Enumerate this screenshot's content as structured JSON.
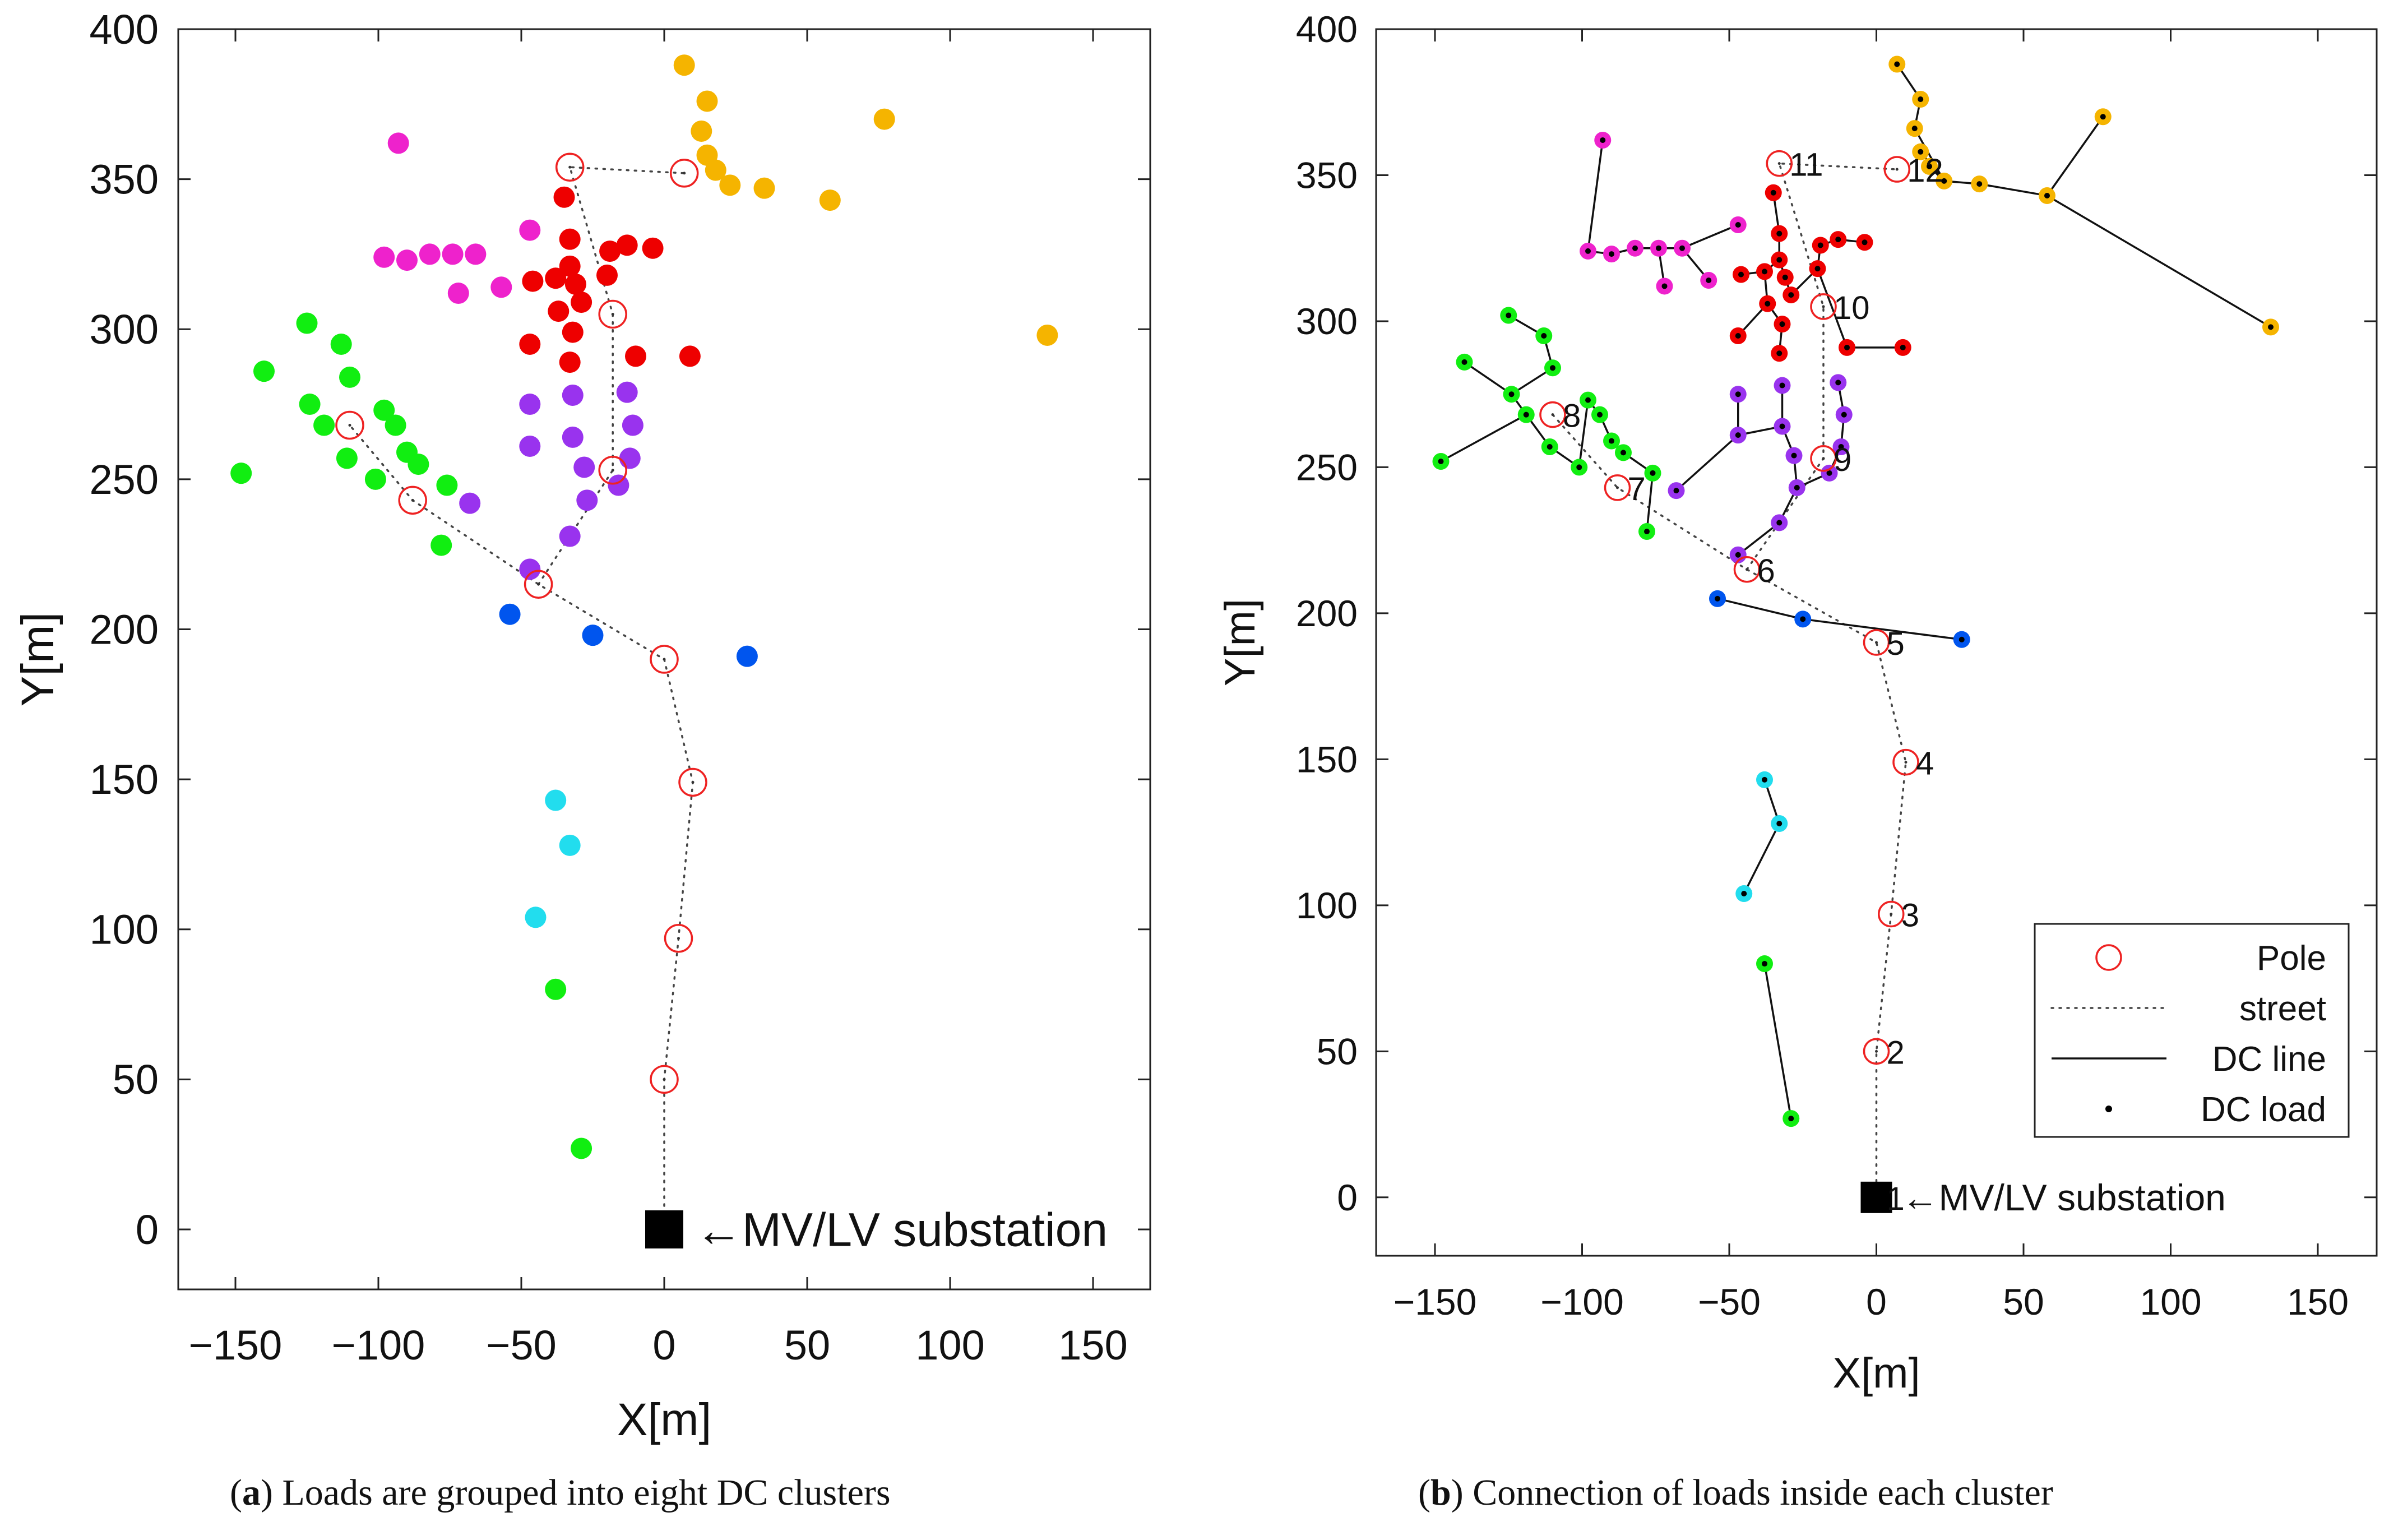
{
  "chart_data": [
    {
      "type": "scatter",
      "panel": "a",
      "xlabel": "X[m]",
      "ylabel": "Y[m]",
      "xlim": [
        -170,
        170
      ],
      "ylim": [
        -20,
        400
      ],
      "xticks": [
        -150,
        -100,
        -50,
        0,
        50,
        100,
        150
      ],
      "yticks": [
        0,
        50,
        100,
        150,
        200,
        250,
        300,
        350,
        400
      ],
      "xtick_labels": [
        "−150",
        "−100",
        "−50",
        "0",
        "50",
        "100",
        "150"
      ],
      "ytick_labels": [
        "0",
        "50",
        "100",
        "150",
        "200",
        "250",
        "300",
        "350",
        "400"
      ],
      "grid": false,
      "caption": {
        "letter": "a",
        "text": " Loads are grouped into eight DC clusters"
      },
      "substation_label": "←MV/LV substation"
    },
    {
      "type": "scatter",
      "panel": "b",
      "xlabel": "X[m]",
      "ylabel": "Y[m]",
      "xlim": [
        -170,
        170
      ],
      "ylim": [
        -20,
        400
      ],
      "xticks": [
        -150,
        -100,
        -50,
        0,
        50,
        100,
        150
      ],
      "yticks": [
        0,
        50,
        100,
        150,
        200,
        250,
        300,
        350,
        400
      ],
      "xtick_labels": [
        "−150",
        "−100",
        "−50",
        "0",
        "50",
        "100",
        "150"
      ],
      "ytick_labels": [
        "0",
        "50",
        "100",
        "150",
        "200",
        "250",
        "300",
        "350",
        "400"
      ],
      "grid": false,
      "caption": {
        "letter": "b",
        "text": " Connection of loads inside each cluster"
      },
      "substation_label": "←MV/LV substation",
      "legend": {
        "position": "bottom-right",
        "entries": [
          {
            "label": "Pole",
            "marker": "circle-open-red"
          },
          {
            "label": "street",
            "marker": "dotted-line"
          },
          {
            "label": "DC line",
            "marker": "solid-line"
          },
          {
            "label": "DC load",
            "marker": "dot"
          }
        ]
      },
      "pole_labels": [
        "1",
        "2",
        "3",
        "4",
        "5",
        "6",
        "7",
        "8",
        "9",
        "10",
        "11",
        "12"
      ]
    }
  ],
  "network": {
    "substation": [
      0,
      0
    ],
    "poles": [
      [
        0,
        0
      ],
      [
        0,
        50
      ],
      [
        5,
        97
      ],
      [
        10,
        149
      ],
      [
        0,
        190
      ],
      [
        -44,
        215
      ],
      [
        -88,
        243
      ],
      [
        -110,
        268
      ],
      [
        -18,
        253
      ],
      [
        -18,
        305
      ],
      [
        -33,
        354
      ],
      [
        7,
        352
      ]
    ],
    "streets": [
      [
        [
          0,
          0
        ],
        [
          0,
          50
        ],
        [
          5,
          97
        ],
        [
          10,
          149
        ],
        [
          0,
          190
        ],
        [
          -44,
          215
        ],
        [
          -88,
          243
        ],
        [
          -110,
          268
        ]
      ],
      [
        [
          -44,
          215
        ],
        [
          -18,
          253
        ],
        [
          -18,
          305
        ],
        [
          -33,
          354
        ],
        [
          7,
          352
        ]
      ]
    ],
    "clusters": [
      {
        "name": "orange",
        "color": "#f5b400",
        "points": [
          [
            7,
            388
          ],
          [
            15,
            376
          ],
          [
            13,
            366
          ],
          [
            15,
            358
          ],
          [
            18,
            353
          ],
          [
            23,
            348
          ],
          [
            35,
            347
          ],
          [
            58,
            343
          ],
          [
            77,
            370
          ],
          [
            134,
            298
          ]
        ],
        "lines": [
          [
            [
              7,
              388
            ],
            [
              15,
              376
            ]
          ],
          [
            [
              15,
              376
            ],
            [
              13,
              366
            ]
          ],
          [
            [
              13,
              366
            ],
            [
              23,
              348
            ]
          ],
          [
            [
              15,
              358
            ],
            [
              23,
              348
            ]
          ],
          [
            [
              18,
              353
            ],
            [
              23,
              348
            ]
          ],
          [
            [
              23,
              348
            ],
            [
              35,
              347
            ]
          ],
          [
            [
              35,
              347
            ],
            [
              58,
              343
            ]
          ],
          [
            [
              58,
              343
            ],
            [
              77,
              370
            ]
          ],
          [
            [
              58,
              343
            ],
            [
              134,
              298
            ]
          ]
        ]
      },
      {
        "name": "magenta",
        "color": "#ee22cc",
        "points": [
          [
            -93,
            362
          ],
          [
            -98,
            324
          ],
          [
            -90,
            323
          ],
          [
            -82,
            325
          ],
          [
            -74,
            325
          ],
          [
            -66,
            325
          ],
          [
            -72,
            312
          ],
          [
            -57,
            314
          ],
          [
            -47,
            333
          ]
        ],
        "lines": [
          [
            [
              -93,
              362
            ],
            [
              -98,
              324
            ]
          ],
          [
            [
              -98,
              324
            ],
            [
              -90,
              323
            ]
          ],
          [
            [
              -90,
              323
            ],
            [
              -82,
              325
            ]
          ],
          [
            [
              -82,
              325
            ],
            [
              -74,
              325
            ]
          ],
          [
            [
              -74,
              325
            ],
            [
              -66,
              325
            ]
          ],
          [
            [
              -74,
              325
            ],
            [
              -72,
              312
            ]
          ],
          [
            [
              -66,
              325
            ],
            [
              -57,
              314
            ]
          ],
          [
            [
              -66,
              325
            ],
            [
              -47,
              333
            ]
          ]
        ]
      },
      {
        "name": "red",
        "color": "#ee0000",
        "points": [
          [
            -35,
            344
          ],
          [
            -33,
            330
          ],
          [
            -33,
            321
          ],
          [
            -31,
            315
          ],
          [
            -29,
            309
          ],
          [
            -38,
            317
          ],
          [
            -46,
            316
          ],
          [
            -37,
            306
          ],
          [
            -32,
            299
          ],
          [
            -33,
            289
          ],
          [
            -47,
            295
          ],
          [
            -19,
            326
          ],
          [
            -13,
            328
          ],
          [
            -4,
            327
          ],
          [
            -20,
            318
          ],
          [
            -10,
            291
          ],
          [
            9,
            291
          ]
        ],
        "lines": [
          [
            [
              -35,
              344
            ],
            [
              -33,
              330
            ]
          ],
          [
            [
              -33,
              330
            ],
            [
              -33,
              321
            ]
          ],
          [
            [
              -33,
              321
            ],
            [
              -31,
              315
            ]
          ],
          [
            [
              -31,
              315
            ],
            [
              -29,
              309
            ]
          ],
          [
            [
              -33,
              321
            ],
            [
              -38,
              317
            ]
          ],
          [
            [
              -38,
              317
            ],
            [
              -46,
              316
            ]
          ],
          [
            [
              -38,
              317
            ],
            [
              -37,
              306
            ]
          ],
          [
            [
              -37,
              306
            ],
            [
              -32,
              299
            ]
          ],
          [
            [
              -32,
              299
            ],
            [
              -33,
              289
            ]
          ],
          [
            [
              -37,
              306
            ],
            [
              -47,
              295
            ]
          ],
          [
            [
              -29,
              309
            ],
            [
              -20,
              318
            ]
          ],
          [
            [
              -20,
              318
            ],
            [
              -19,
              326
            ]
          ],
          [
            [
              -19,
              326
            ],
            [
              -13,
              328
            ]
          ],
          [
            [
              -13,
              328
            ],
            [
              -4,
              327
            ]
          ],
          [
            [
              -20,
              318
            ],
            [
              -10,
              291
            ]
          ],
          [
            [
              -10,
              291
            ],
            [
              9,
              291
            ]
          ]
        ]
      },
      {
        "name": "purple",
        "color": "#9933ee",
        "points": [
          [
            -47,
            275
          ],
          [
            -47,
            261
          ],
          [
            -32,
            278
          ],
          [
            -32,
            264
          ],
          [
            -28,
            254
          ],
          [
            -27,
            243
          ],
          [
            -13,
            279
          ],
          [
            -11,
            268
          ],
          [
            -12,
            257
          ],
          [
            -16,
            248
          ],
          [
            -33,
            231
          ],
          [
            -47,
            220
          ],
          [
            -68,
            242
          ]
        ],
        "lines": [
          [
            [
              -47,
              275
            ],
            [
              -47,
              261
            ]
          ],
          [
            [
              -47,
              261
            ],
            [
              -32,
              264
            ]
          ],
          [
            [
              -32,
              278
            ],
            [
              -32,
              264
            ]
          ],
          [
            [
              -32,
              264
            ],
            [
              -28,
              254
            ]
          ],
          [
            [
              -28,
              254
            ],
            [
              -27,
              243
            ]
          ],
          [
            [
              -27,
              243
            ],
            [
              -16,
              248
            ]
          ],
          [
            [
              -16,
              248
            ],
            [
              -12,
              257
            ]
          ],
          [
            [
              -12,
              257
            ],
            [
              -11,
              268
            ]
          ],
          [
            [
              -11,
              268
            ],
            [
              -13,
              279
            ]
          ],
          [
            [
              -27,
              243
            ],
            [
              -33,
              231
            ]
          ],
          [
            [
              -33,
              231
            ],
            [
              -47,
              220
            ]
          ],
          [
            [
              -47,
              261
            ],
            [
              -68,
              242
            ]
          ]
        ]
      },
      {
        "name": "green",
        "color": "#11ee11",
        "points": [
          [
            -125,
            302
          ],
          [
            -113,
            295
          ],
          [
            -110,
            284
          ],
          [
            -140,
            286
          ],
          [
            -124,
            275
          ],
          [
            -119,
            268
          ],
          [
            -98,
            273
          ],
          [
            -94,
            268
          ],
          [
            -111,
            257
          ],
          [
            -90,
            259
          ],
          [
            -86,
            255
          ],
          [
            -101,
            250
          ],
          [
            -76,
            248
          ],
          [
            -78,
            228
          ],
          [
            -148,
            252
          ]
        ],
        "lines": [
          [
            [
              -125,
              302
            ],
            [
              -113,
              295
            ]
          ],
          [
            [
              -113,
              295
            ],
            [
              -110,
              284
            ]
          ],
          [
            [
              -110,
              284
            ],
            [
              -124,
              275
            ]
          ],
          [
            [
              -140,
              286
            ],
            [
              -124,
              275
            ]
          ],
          [
            [
              -124,
              275
            ],
            [
              -119,
              268
            ]
          ],
          [
            [
              -119,
              268
            ],
            [
              -148,
              252
            ]
          ],
          [
            [
              -119,
              268
            ],
            [
              -111,
              257
            ]
          ],
          [
            [
              -111,
              257
            ],
            [
              -101,
              250
            ]
          ],
          [
            [
              -101,
              250
            ],
            [
              -98,
              273
            ]
          ],
          [
            [
              -98,
              273
            ],
            [
              -94,
              268
            ]
          ],
          [
            [
              -94,
              268
            ],
            [
              -90,
              259
            ]
          ],
          [
            [
              -90,
              259
            ],
            [
              -86,
              255
            ]
          ],
          [
            [
              -86,
              255
            ],
            [
              -76,
              248
            ]
          ],
          [
            [
              -76,
              248
            ],
            [
              -78,
              228
            ]
          ]
        ]
      },
      {
        "name": "blue",
        "color": "#0055ee",
        "points": [
          [
            -54,
            205
          ],
          [
            -25,
            198
          ],
          [
            29,
            191
          ]
        ],
        "lines": [
          [
            [
              -54,
              205
            ],
            [
              -25,
              198
            ]
          ],
          [
            [
              -25,
              198
            ],
            [
              29,
              191
            ]
          ]
        ]
      },
      {
        "name": "cyan",
        "color": "#22ddee",
        "points": [
          [
            -38,
            143
          ],
          [
            -33,
            128
          ],
          [
            -45,
            104
          ]
        ],
        "lines": [
          [
            [
              -38,
              143
            ],
            [
              -33,
              128
            ]
          ],
          [
            [
              -33,
              128
            ],
            [
              -45,
              104
            ]
          ]
        ]
      },
      {
        "name": "green-south",
        "color": "#11ee11",
        "points": [
          [
            -38,
            80
          ],
          [
            -29,
            27
          ]
        ],
        "lines": [
          [
            [
              -38,
              80
            ],
            [
              -29,
              27
            ]
          ]
        ]
      }
    ]
  }
}
